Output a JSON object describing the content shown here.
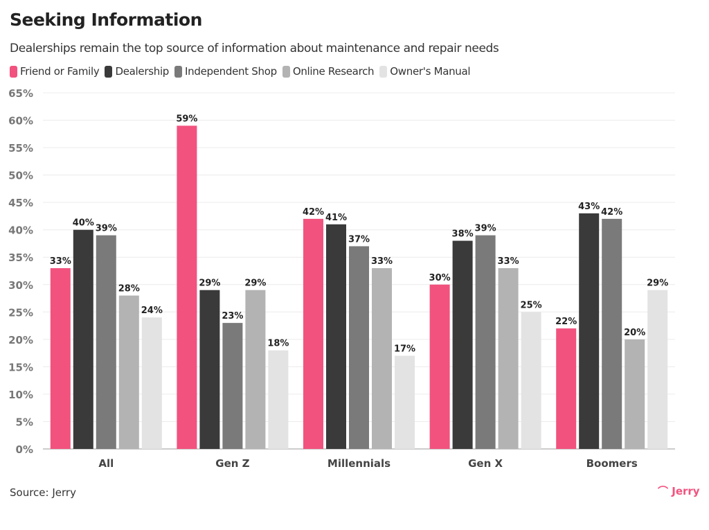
{
  "chart_data": {
    "type": "bar",
    "title": "Seeking Information",
    "subtitle": "Dealerships remain the top source of information about maintenance and repair needs",
    "categories": [
      "All",
      "Gen Z",
      "Millennials",
      "Gen X",
      "Boomers"
    ],
    "series": [
      {
        "name": "Friend or Family",
        "color": "#f2527e",
        "values": [
          33,
          59,
          42,
          30,
          22
        ]
      },
      {
        "name": "Dealership",
        "color": "#3a3a3a",
        "values": [
          40,
          29,
          41,
          38,
          43
        ]
      },
      {
        "name": "Independent Shop",
        "color": "#7a7a7a",
        "values": [
          39,
          23,
          37,
          39,
          42
        ]
      },
      {
        "name": "Online Research",
        "color": "#b3b3b3",
        "values": [
          28,
          29,
          33,
          33,
          20
        ]
      },
      {
        "name": "Owner's Manual",
        "color": "#e3e3e3",
        "values": [
          24,
          18,
          17,
          25,
          29
        ]
      }
    ],
    "ylim": [
      0,
      65
    ],
    "yticks": [
      0,
      5,
      10,
      15,
      20,
      25,
      30,
      35,
      40,
      45,
      50,
      55,
      60,
      65
    ],
    "ytick_format": "%",
    "grid": true,
    "legend_placement": "top-left",
    "source": "Source: Jerry",
    "logo": "Jerry"
  }
}
